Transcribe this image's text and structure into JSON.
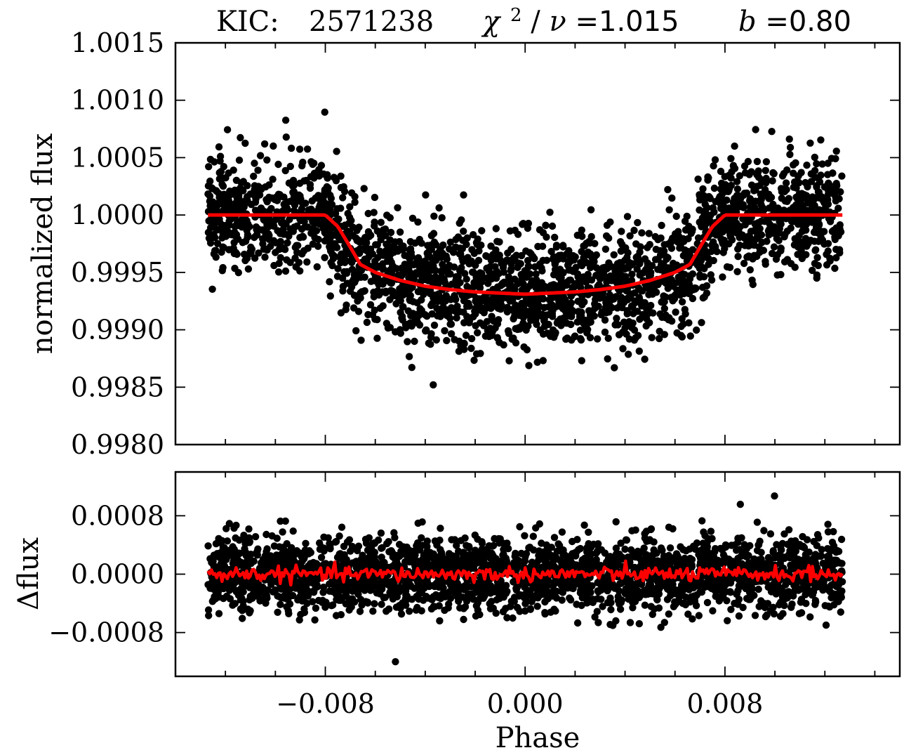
{
  "title": {
    "target_label": "KIC:",
    "target_id": "2571238",
    "chi_symbol": "χ",
    "chi_exp": "2",
    "chi_sep": " /",
    "nu_symbol": "ν",
    "chi_value": "=1.015",
    "b_symbol": "b",
    "b_value": "=0.80"
  },
  "colors": {
    "points": "#000000",
    "model": "#ff0000",
    "background": "#ffffff"
  },
  "chart_data": [
    {
      "type": "scatter",
      "panel": "top",
      "ylabel": "normalized flux",
      "xlim": [
        -0.014,
        0.015
      ],
      "ylim": [
        0.998,
        1.0015
      ],
      "yticks": [
        0.998,
        0.9985,
        0.999,
        0.9995,
        1.0,
        1.0005,
        1.001,
        1.0015
      ],
      "ytick_labels": [
        "0.9980",
        "0.9985",
        "0.9990",
        "0.9995",
        "1.0000",
        "1.0005",
        "1.0010",
        "1.0015"
      ],
      "xticks": [
        -0.008,
        0.0,
        0.008
      ],
      "scatter_x_range": [
        -0.0127,
        0.0127
      ],
      "scatter_noise_sigma": 0.00025,
      "series": [
        {
          "style": "line",
          "color": "#ff0000",
          "x": [
            -0.0127,
            -0.008,
            -0.0075,
            -0.007,
            -0.0066,
            -0.006,
            -0.005,
            -0.004,
            -0.003,
            -0.002,
            -0.001,
            0.0,
            0.001,
            0.002,
            0.003,
            0.004,
            0.005,
            0.006,
            0.0066,
            0.007,
            0.0075,
            0.008,
            0.0127
          ],
          "y": [
            1.0,
            1.0,
            0.9999,
            0.99972,
            0.99957,
            0.9995,
            0.99943,
            0.99938,
            0.99935,
            0.99933,
            0.99932,
            0.99931,
            0.99932,
            0.99933,
            0.99935,
            0.99938,
            0.99943,
            0.9995,
            0.99957,
            0.99972,
            0.9999,
            1.0,
            1.0
          ]
        }
      ]
    },
    {
      "type": "scatter",
      "panel": "bottom",
      "xlabel": "Phase",
      "ylabel": "Δflux",
      "xlim": [
        -0.014,
        0.015
      ],
      "ylim": [
        -0.0014,
        0.0014
      ],
      "yticks": [
        -0.0008,
        0.0,
        0.0008
      ],
      "ytick_labels": [
        "−0.0008",
        "0.0000",
        "0.0008"
      ],
      "xticks": [
        -0.008,
        0.0,
        0.008
      ],
      "xtick_labels": [
        "−0.008",
        "0.000",
        "0.008"
      ],
      "scatter_x_range": [
        -0.0127,
        0.0127
      ],
      "scatter_noise_sigma": 0.00025,
      "series": [
        {
          "style": "line",
          "color": "#ff0000",
          "x_range": [
            -0.0127,
            0.0127
          ],
          "level": 0.0,
          "jitter": 5e-05
        }
      ]
    }
  ]
}
